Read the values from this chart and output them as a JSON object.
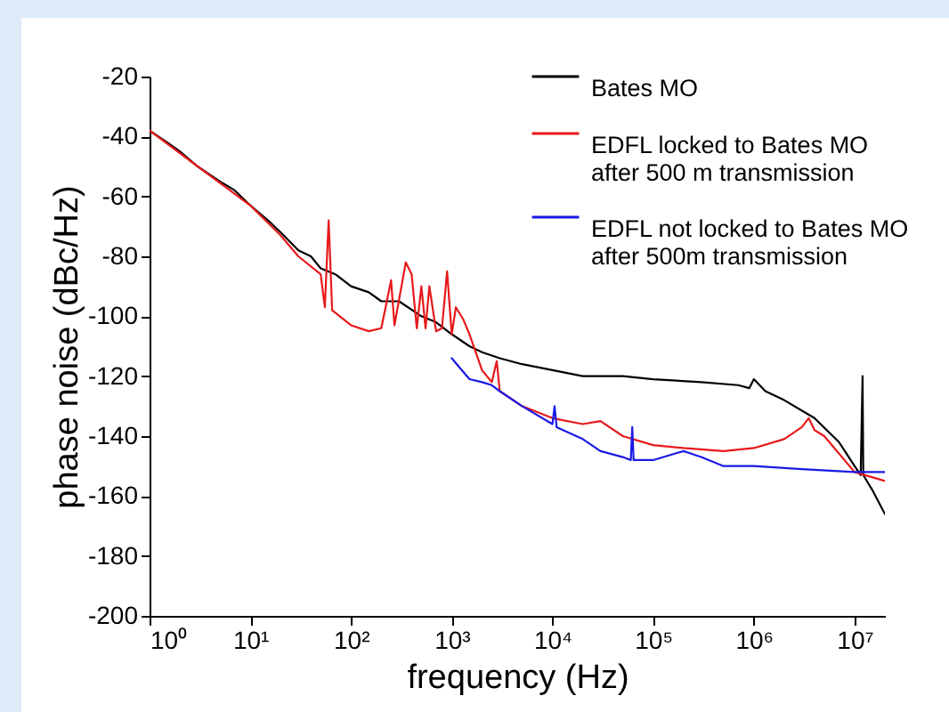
{
  "chart_data": {
    "type": "line",
    "xlabel": "frequency (Hz)",
    "ylabel": "phase noise (dBc/Hz)",
    "log": "x",
    "legend": "top right",
    "xlim": [
      1,
      20000000
    ],
    "ylim": [
      -200,
      -20
    ],
    "xticks": [
      {
        "value": 1,
        "label": "10⁰"
      },
      {
        "value": 10,
        "label": "10¹"
      },
      {
        "value": 100,
        "label": "10²"
      },
      {
        "value": 1000,
        "label": "10³"
      },
      {
        "value": 10000,
        "label": "10⁴"
      },
      {
        "value": 100000,
        "label": "10⁵"
      },
      {
        "value": 1000000,
        "label": "10⁶"
      },
      {
        "value": 10000000,
        "label": "10⁷"
      }
    ],
    "yticks": [
      -20,
      -40,
      -60,
      -80,
      -100,
      -120,
      -140,
      -160,
      -180,
      -200
    ],
    "series": [
      {
        "name": "Bates MO",
        "color": "#000000",
        "x": [
          1,
          1.5,
          2,
          3,
          5,
          7,
          10,
          15,
          20,
          30,
          40,
          50,
          70,
          100,
          150,
          200,
          300,
          500,
          700,
          1000,
          1500,
          2000,
          3000,
          5000,
          10000,
          20000,
          50000,
          100000,
          300000,
          700000,
          900000,
          1000000,
          1300000,
          2000000,
          4000000,
          7000000,
          10000000,
          11500000,
          12000000,
          12200000,
          15000000,
          20000000
        ],
        "values": [
          -38,
          -42,
          -45,
          -50,
          -55,
          -58,
          -63,
          -68,
          -72,
          -78,
          -80,
          -84,
          -86,
          -90,
          -92,
          -95,
          -95,
          -100,
          -102,
          -106,
          -110,
          -112,
          -114,
          -116,
          -118,
          -120,
          -120,
          -121,
          -122,
          -123,
          -124,
          -121,
          -125,
          -128,
          -134,
          -142,
          -150,
          -153,
          -120,
          -153,
          -158,
          -166
        ]
      },
      {
        "name": "EDFL locked to Bates MO after 500 m transmission",
        "color": "#e8191b",
        "x": [
          1,
          3,
          10,
          20,
          30,
          50,
          55,
          60,
          65,
          100,
          150,
          200,
          250,
          270,
          350,
          400,
          450,
          500,
          550,
          600,
          700,
          800,
          900,
          1000,
          1100,
          1300,
          1500,
          2000,
          2500,
          2800,
          3000,
          5000,
          10000,
          20000,
          30000,
          50000,
          100000,
          200000,
          500000,
          1000000,
          2000000,
          3000000,
          3500000,
          4000000,
          5000000,
          10000000,
          20000000
        ],
        "values": [
          -38,
          -50,
          -63,
          -73,
          -80,
          -86,
          -97,
          -68,
          -98,
          -103,
          -105,
          -104,
          -88,
          -103,
          -82,
          -86,
          -104,
          -90,
          -104,
          -90,
          -105,
          -104,
          -85,
          -106,
          -97,
          -101,
          -106,
          -118,
          -122,
          -115,
          -125,
          -130,
          -134,
          -136,
          -135,
          -140,
          -143,
          -144,
          -145,
          -144,
          -141,
          -137,
          -134,
          -138,
          -140,
          -152,
          -155
        ]
      },
      {
        "name": "EDFL not locked to Bates MO after 500m transmission",
        "color": "#1a1ae6",
        "x": [
          1000,
          1500,
          2000,
          2500,
          3000,
          5000,
          10000,
          10500,
          11000,
          20000,
          30000,
          50000,
          60000,
          62000,
          64000,
          100000,
          200000,
          300000,
          500000,
          1000000,
          3000000,
          10000000,
          20000000
        ],
        "values": [
          -114,
          -121,
          -122,
          -123,
          -125,
          -130,
          -136,
          -130,
          -137,
          -141,
          -145,
          -147,
          -148,
          -137,
          -148,
          -148,
          -145,
          -147,
          -150,
          -150,
          -151,
          -152,
          -152
        ]
      }
    ]
  }
}
